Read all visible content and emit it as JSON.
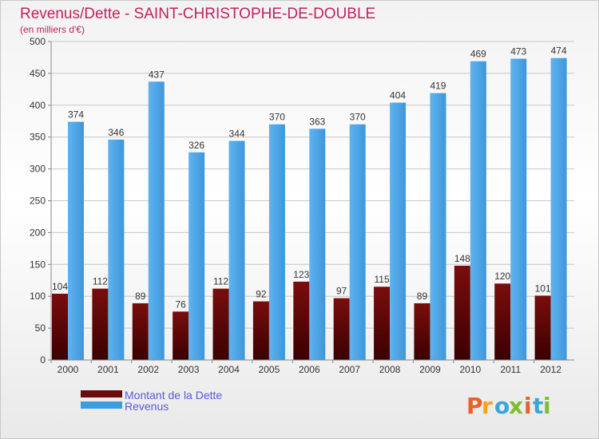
{
  "chart_data": {
    "type": "bar",
    "title": "Revenus/Dette - SAINT-CHRISTOPHE-DE-DOUBLE",
    "subtitle": "(en milliers d'€)",
    "categories": [
      "2000",
      "2001",
      "2002",
      "2003",
      "2004",
      "2005",
      "2006",
      "2007",
      "2008",
      "2009",
      "2010",
      "2011",
      "2012"
    ],
    "series": [
      {
        "name": "Montant de la Dette",
        "color": "#6b0a0a",
        "values": [
          104,
          112,
          89,
          76,
          112,
          92,
          123,
          97,
          115,
          89,
          148,
          120,
          101
        ]
      },
      {
        "name": "Revenus",
        "color": "#3d9be0",
        "values": [
          374,
          346,
          437,
          326,
          344,
          370,
          363,
          370,
          404,
          419,
          469,
          473,
          474
        ]
      }
    ],
    "ylim": [
      0,
      500
    ],
    "yticks": [
      0,
      50,
      100,
      150,
      200,
      250,
      300,
      350,
      400,
      450,
      500
    ],
    "grid": true,
    "legend_position": "bottom-left"
  },
  "logo": {
    "text": "Proxiti",
    "colors": [
      "#e8602c",
      "#f3a21c",
      "#3aa7d8",
      "#7bbf2a",
      "#e8602c",
      "#3aa7d8",
      "#7bbf2a"
    ]
  }
}
